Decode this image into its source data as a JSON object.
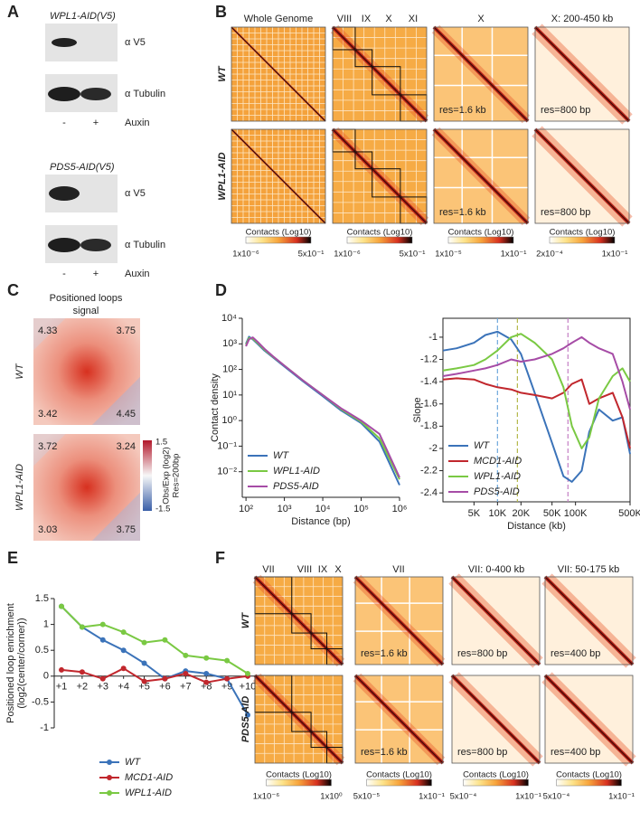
{
  "panel_labels": [
    "A",
    "B",
    "C",
    "D",
    "E",
    "F"
  ],
  "panel_a": {
    "blots": [
      {
        "title": "WPL1-AID(V5)",
        "rows": [
          "α V5",
          "α Tubulin"
        ],
        "lanes": [
          "-",
          "+"
        ],
        "treatment": "Auxin"
      },
      {
        "title": "PDS5-AID(V5)",
        "rows": [
          "α V5",
          "α Tubulin"
        ],
        "lanes": [
          "-",
          "+"
        ],
        "treatment": "Auxin"
      }
    ]
  },
  "panel_b": {
    "headers": [
      "Whole Genome",
      "VIII",
      "IX",
      "X",
      "XI",
      "X",
      "X: 200-450 kb"
    ],
    "rows": [
      "WT",
      "WPL1-AID"
    ],
    "res_labels": [
      [
        "res=1.6 kb",
        "res=800 bp"
      ],
      [
        "res=1.6 kb",
        "res=800 bp"
      ]
    ],
    "colorbars": [
      {
        "title": "Contacts (Log10)",
        "min": "1x10⁻⁶",
        "max": "5x10⁻¹"
      },
      {
        "title": "Contacts (Log10)",
        "min": "1x10⁻⁶",
        "max": "5x10⁻¹"
      },
      {
        "title": "Contacts (Log10)",
        "min": "1x10⁻⁵",
        "max": "1x10⁻¹"
      },
      {
        "title": "Contacts (Log10)",
        "min": "2x10⁻⁴",
        "max": "1x10⁻¹"
      }
    ]
  },
  "panel_c": {
    "title": [
      "Positioned loops",
      "signal"
    ],
    "rows": [
      {
        "name": "WT",
        "corners": [
          4.33,
          3.75,
          3.42,
          4.45
        ]
      },
      {
        "name": "WPL1-AID",
        "corners": [
          3.72,
          3.24,
          3.03,
          3.75
        ]
      }
    ],
    "colorbar": {
      "max": 1.5,
      "min": -1.5,
      "title": [
        "Obs/Exp (log2)",
        "Res=200bp"
      ]
    }
  },
  "chart_data": [
    {
      "type": "line",
      "xlabel": "Distance (bp)",
      "ylabel": "Contact density",
      "xscale": "log",
      "yscale": "log",
      "xlim": [
        80,
        1000000
      ],
      "ylim": [
        0.001,
        10000
      ],
      "xticks": [
        {
          "value": 100,
          "label": "10²"
        },
        {
          "value": 1000,
          "label": "10³"
        },
        {
          "value": 10000,
          "label": "10⁴"
        },
        {
          "value": 100000,
          "label": "10⁵"
        },
        {
          "value": 1000000,
          "label": "10⁶"
        }
      ],
      "yticks": [
        {
          "value": 0.01,
          "label": "10⁻²"
        },
        {
          "value": 0.1,
          "label": "10⁻¹"
        },
        {
          "value": 1,
          "label": "10⁰"
        },
        {
          "value": 10,
          "label": "10¹"
        },
        {
          "value": 100,
          "label": "10²"
        },
        {
          "value": 1000,
          "label": "10³"
        },
        {
          "value": 10000,
          "label": "10⁴"
        }
      ],
      "x": [
        100,
        120,
        150,
        200,
        300,
        500,
        1000,
        3000,
        10000,
        30000,
        100000,
        300000,
        1000000
      ],
      "series": [
        {
          "name": "WT",
          "color": "#3b73b9",
          "values": [
            1000,
            1900,
            1500,
            1000,
            550,
            300,
            130,
            35,
            9,
            2.5,
            0.8,
            0.15,
            0.003
          ]
        },
        {
          "name": "WPL1-AID",
          "color": "#7ac943",
          "values": [
            900,
            1700,
            1600,
            1100,
            600,
            320,
            140,
            38,
            10,
            2.8,
            0.9,
            0.2,
            0.005
          ]
        },
        {
          "name": "PDS5-AID",
          "color": "#a64ca6",
          "values": [
            800,
            1500,
            1800,
            1200,
            650,
            330,
            140,
            38,
            10,
            3,
            1,
            0.3,
            0.006
          ]
        }
      ],
      "legend": "lower left"
    },
    {
      "type": "line",
      "xlabel": "Distance (kb)",
      "ylabel": "Slope",
      "xscale": "log",
      "xlim": [
        2,
        500
      ],
      "ylim": [
        -2.48,
        -0.83
      ],
      "box": true,
      "xticks": [
        {
          "value": 5,
          "label": "5K"
        },
        {
          "value": 10,
          "label": "10K"
        },
        {
          "value": 20,
          "label": "20K"
        },
        {
          "value": 50,
          "label": "50K"
        },
        {
          "value": 100,
          "label": "100K"
        },
        {
          "value": 500,
          "label": "500K"
        }
      ],
      "yticks": [
        -1,
        -1.2,
        -1.4,
        -1.6,
        -1.8,
        -2,
        -2.2,
        -2.4
      ],
      "x": [
        2,
        3,
        5,
        7,
        10,
        15,
        20,
        30,
        50,
        70,
        90,
        120,
        150,
        200,
        300,
        400,
        500
      ],
      "series": [
        {
          "name": "WT",
          "color": "#3b73b9",
          "values": [
            -1.12,
            -1.1,
            -1.05,
            -0.98,
            -0.95,
            -1.02,
            -1.15,
            -1.5,
            -1.95,
            -2.25,
            -2.3,
            -2.2,
            -1.85,
            -1.65,
            -1.75,
            -1.72,
            -2.05
          ]
        },
        {
          "name": "MCD1-AID",
          "color": "#c1272d",
          "values": [
            -1.38,
            -1.37,
            -1.38,
            -1.42,
            -1.45,
            -1.47,
            -1.5,
            -1.52,
            -1.55,
            -1.5,
            -1.42,
            -1.38,
            -1.6,
            -1.55,
            -1.5,
            -1.72,
            -2.0
          ]
        },
        {
          "name": "WPL1-AID",
          "color": "#7ac943",
          "values": [
            -1.3,
            -1.28,
            -1.25,
            -1.2,
            -1.12,
            -1.0,
            -0.97,
            -1.05,
            -1.2,
            -1.45,
            -1.8,
            -2.0,
            -1.9,
            -1.55,
            -1.35,
            -1.28,
            -1.4
          ]
        },
        {
          "name": "PDS5-AID",
          "color": "#a64ca6",
          "values": [
            -1.35,
            -1.33,
            -1.3,
            -1.28,
            -1.25,
            -1.2,
            -1.22,
            -1.2,
            -1.15,
            -1.1,
            -1.05,
            -1.0,
            -1.05,
            -1.1,
            -1.15,
            -1.4,
            -1.65
          ]
        }
      ],
      "vlines": [
        {
          "x": 10,
          "color": "#6fa8dc"
        },
        {
          "x": 18,
          "color": "#b5b84a"
        },
        {
          "x": 80,
          "color": "#c47fc4"
        }
      ],
      "legend": "lower left"
    },
    {
      "type": "line",
      "ylabel": [
        "Positioned loop enrichment",
        "(log2(center/corner))"
      ],
      "categories": [
        "+1",
        "+2",
        "+3",
        "+4",
        "+5",
        "+6",
        "+7",
        "+8",
        "+9",
        "+10"
      ],
      "ylim": [
        -1,
        1.5
      ],
      "yticks": [
        -1,
        -0.5,
        0,
        0.5,
        1,
        1.5
      ],
      "markers": true,
      "series": [
        {
          "name": "WT",
          "color": "#3b73b9",
          "values": [
            1.35,
            0.95,
            0.7,
            0.5,
            0.25,
            -0.05,
            0.1,
            0.05,
            -0.05,
            -0.75
          ]
        },
        {
          "name": "MCD1-AID",
          "color": "#c1272d",
          "values": [
            0.12,
            0.08,
            -0.05,
            0.15,
            -0.1,
            -0.05,
            0.05,
            -0.12,
            -0.05,
            0.0
          ]
        },
        {
          "name": "WPL1-AID",
          "color": "#7ac943",
          "values": [
            1.35,
            0.95,
            1.0,
            0.85,
            0.65,
            0.7,
            0.4,
            0.35,
            0.3,
            0.05
          ]
        }
      ],
      "legend": "below"
    }
  ],
  "panel_f": {
    "headers": [
      "VII",
      "VIII",
      "IX",
      "X",
      "VII",
      "VII: 0-400 kb",
      "VII: 50-175 kb"
    ],
    "rows": [
      "WT",
      "PDS5-AID"
    ],
    "res_labels": [
      [
        "res=1.6 kb",
        "res=800 bp",
        "res=400 bp"
      ],
      [
        "res=1.6 kb",
        "res=800 bp",
        "res=400 bp"
      ]
    ],
    "colorbars": [
      {
        "title": "Contacts (Log10)",
        "min": "1x10⁻⁶",
        "max": "1x10⁰"
      },
      {
        "title": "Contacts (Log10)",
        "min": "5x10⁻⁵",
        "max": "1x10⁻¹"
      },
      {
        "title": "Contacts (Log10)",
        "min": "5x10⁻⁴",
        "max": "1x10⁻¹"
      },
      {
        "title": "Contacts (Log10)",
        "min": "5x10⁻⁴",
        "max": "1x10⁻¹"
      }
    ]
  }
}
